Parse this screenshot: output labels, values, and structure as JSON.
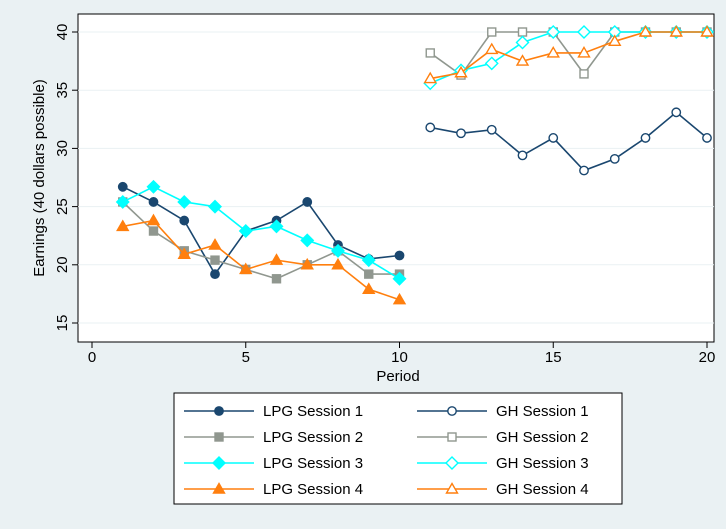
{
  "chart_data": {
    "type": "line",
    "xlabel": "Period",
    "ylabel": "Earnings (40 dollars possible)",
    "xlim": [
      0,
      20
    ],
    "ylim": [
      15,
      40
    ],
    "x_ticks": [
      0,
      5,
      10,
      15,
      20
    ],
    "y_ticks": [
      15,
      20,
      25,
      30,
      35,
      40
    ],
    "grid": "horizontal",
    "legend_position": "bottom",
    "series": [
      {
        "name": "LPG Session 1",
        "color": "#1a476f",
        "marker": "circle-filled",
        "x": [
          1,
          2,
          3,
          4,
          5,
          6,
          7,
          8,
          9,
          10
        ],
        "y": [
          26.7,
          25.4,
          23.8,
          19.2,
          22.9,
          23.8,
          25.4,
          21.7,
          20.5,
          20.8
        ]
      },
      {
        "name": "LPG Session 2",
        "color": "#90978f",
        "marker": "square-filled",
        "x": [
          1,
          2,
          3,
          4,
          5,
          6,
          7,
          8,
          9,
          10
        ],
        "y": [
          25.4,
          22.9,
          21.2,
          20.4,
          19.6,
          18.8,
          20.0,
          21.2,
          19.2,
          19.2
        ]
      },
      {
        "name": "LPG Session 3",
        "color": "#00ffff",
        "marker": "diamond-filled",
        "x": [
          1,
          2,
          3,
          4,
          5,
          6,
          7,
          8,
          9,
          10
        ],
        "y": [
          25.4,
          26.7,
          25.4,
          25.0,
          22.9,
          23.3,
          22.1,
          21.2,
          20.4,
          18.8
        ]
      },
      {
        "name": "LPG Session 4",
        "color": "#ff7f0e",
        "marker": "triangle-filled",
        "x": [
          1,
          2,
          3,
          4,
          5,
          6,
          7,
          8,
          9,
          10
        ],
        "y": [
          23.3,
          23.8,
          20.9,
          21.7,
          19.6,
          20.4,
          20.0,
          20.0,
          17.9,
          17.0
        ]
      },
      {
        "name": "GH Session 1",
        "color": "#1a476f",
        "marker": "circle-hollow",
        "x": [
          11,
          12,
          13,
          14,
          15,
          16,
          17,
          18,
          19,
          20
        ],
        "y": [
          31.8,
          31.3,
          31.6,
          29.4,
          30.9,
          28.1,
          29.1,
          30.9,
          33.1,
          30.9
        ]
      },
      {
        "name": "GH Session 2",
        "color": "#90978f",
        "marker": "square-hollow",
        "x": [
          11,
          12,
          13,
          14,
          15,
          16,
          17,
          18,
          19,
          20
        ],
        "y": [
          38.2,
          36.3,
          40.0,
          40.0,
          40.0,
          36.4,
          40.0,
          40.0,
          40.0,
          40.0
        ]
      },
      {
        "name": "GH Session 3",
        "color": "#00ffff",
        "marker": "diamond-hollow",
        "x": [
          11,
          12,
          13,
          14,
          15,
          16,
          17,
          18,
          19,
          20
        ],
        "y": [
          35.6,
          36.7,
          37.3,
          39.1,
          40.0,
          40.0,
          40.0,
          40.0,
          40.0,
          40.0
        ]
      },
      {
        "name": "GH Session 4",
        "color": "#ff7f0e",
        "marker": "triangle-hollow",
        "x": [
          11,
          12,
          13,
          14,
          15,
          16,
          17,
          18,
          19,
          20
        ],
        "y": [
          36.0,
          36.5,
          38.5,
          37.5,
          38.2,
          38.2,
          39.2,
          40.0,
          40.0,
          40.0
        ]
      }
    ]
  }
}
